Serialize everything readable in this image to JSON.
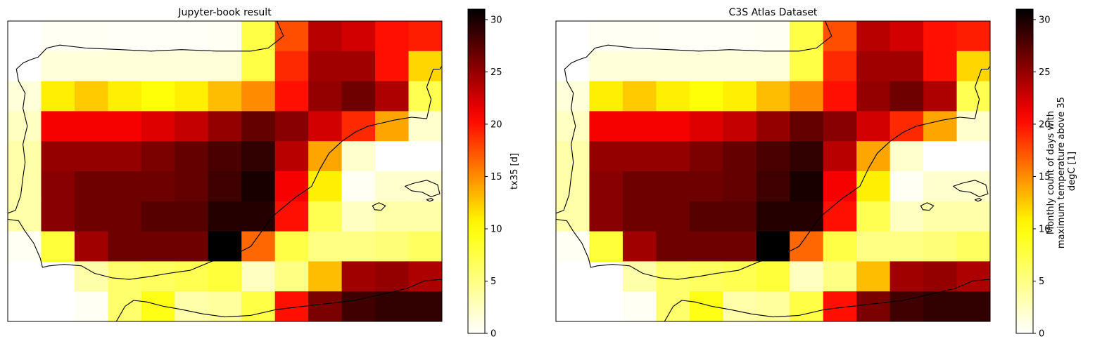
{
  "colormap": {
    "name": "hot_r",
    "stops": [
      "#ffffff",
      "#ffff00",
      "#ff0000",
      "#000000"
    ]
  },
  "chart_data": [
    {
      "type": "heatmap",
      "title": "Jupyter-book result",
      "colorbar_label": "tx35 [d]",
      "colorbar_ticks": [
        0,
        5,
        10,
        15,
        20,
        25,
        30
      ],
      "vmin": 0,
      "vmax": 31,
      "x_axis": "longitude (no ticks shown)",
      "y_axis": "latitude (no ticks shown)",
      "grid": false,
      "values": [
        [
          null,
          0.5,
          0.5,
          0.3,
          0.3,
          0.3,
          0.5,
          7.5,
          17.5,
          23.5,
          22.5,
          20,
          19.5
        ],
        [
          null,
          1.5,
          1.5,
          1.5,
          1.5,
          1.5,
          1.5,
          7.5,
          19,
          24.5,
          24.5,
          20,
          12
        ],
        [
          1.5,
          11,
          12.5,
          11,
          10,
          11,
          13,
          15,
          20,
          25,
          26.5,
          24,
          7
        ],
        [
          2.5,
          21,
          21,
          21,
          22,
          23,
          25,
          27,
          25.5,
          22.5,
          19,
          14,
          2
        ],
        [
          3.5,
          25,
          25,
          25,
          26,
          27,
          28,
          29,
          23.5,
          14,
          2,
          0,
          0
        ],
        [
          3.5,
          25.5,
          26.5,
          26.5,
          26.5,
          27,
          28.5,
          30,
          21,
          11,
          0.5,
          2,
          2
        ],
        [
          3.5,
          25.5,
          26.5,
          26.5,
          27.5,
          27.5,
          29.5,
          29.5,
          20,
          7,
          2.5,
          3.5,
          3.5
        ],
        [
          0.5,
          8,
          24.5,
          26.5,
          26.5,
          26.5,
          31,
          16.5,
          7.5,
          5,
          5,
          5.5,
          6.5
        ],
        [
          null,
          null,
          3.5,
          6,
          6.5,
          7,
          8,
          2.5,
          5,
          13,
          24.5,
          25,
          24
        ],
        [
          null,
          null,
          0.5,
          6,
          9.5,
          3.5,
          4,
          7.5,
          20,
          26,
          28.5,
          29,
          29
        ]
      ]
    },
    {
      "type": "heatmap",
      "title": "C3S Atlas Dataset",
      "colorbar_label": "Monthly count of days with maximum temperature above 35 degC [1]",
      "colorbar_label_lines": [
        "Monthly count of days with",
        "maximum temperature above 35",
        "degC [1]"
      ],
      "colorbar_ticks": [
        0,
        5,
        10,
        15,
        20,
        25,
        30
      ],
      "vmin": 0,
      "vmax": 31,
      "x_axis": "longitude (no ticks shown)",
      "y_axis": "latitude (no ticks shown)",
      "grid": false,
      "values": [
        [
          null,
          0.5,
          0.5,
          0.3,
          0.3,
          0.3,
          0.5,
          7.5,
          17.5,
          23.5,
          22.5,
          20,
          19.5
        ],
        [
          null,
          1.5,
          1.5,
          1.5,
          1.5,
          1.5,
          1.5,
          7.5,
          19,
          24.5,
          24.5,
          20,
          12
        ],
        [
          1.5,
          11,
          12.5,
          11,
          10,
          11,
          13,
          15,
          20,
          25,
          26.5,
          24,
          7
        ],
        [
          2.5,
          21,
          21,
          21,
          22,
          23,
          25,
          27,
          25.5,
          22.5,
          19,
          14,
          2
        ],
        [
          3.5,
          25,
          25,
          25,
          26,
          27,
          28,
          29,
          23.5,
          14,
          2,
          0,
          0
        ],
        [
          3.5,
          25.5,
          26.5,
          26.5,
          26.5,
          27,
          28.5,
          30,
          21,
          11,
          0.5,
          2,
          2
        ],
        [
          3.5,
          25.5,
          26.5,
          26.5,
          27.5,
          27.5,
          29.5,
          29.5,
          20,
          7,
          2.5,
          3.5,
          3.5
        ],
        [
          0.5,
          8,
          24.5,
          26.5,
          26.5,
          26.5,
          31,
          16.5,
          7.5,
          5,
          5,
          5.5,
          6.5
        ],
        [
          null,
          null,
          3.5,
          6,
          6.5,
          7,
          8,
          2.5,
          5,
          13,
          24.5,
          25,
          24
        ],
        [
          null,
          null,
          0.5,
          6,
          9.5,
          3.5,
          4,
          7.5,
          20,
          26,
          28.5,
          29,
          29
        ]
      ]
    }
  ]
}
